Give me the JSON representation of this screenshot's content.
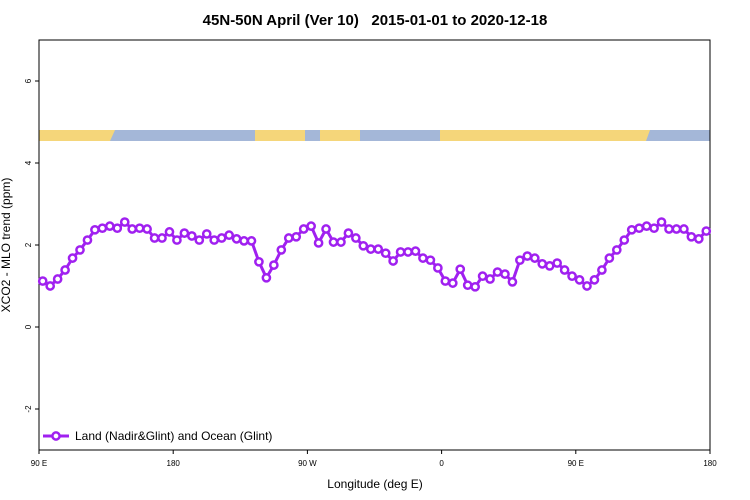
{
  "chart_data": {
    "type": "line",
    "title": "45N-50N April (Ver 10)   2015-01-01 to 2020-12-18",
    "xlabel": "Longitude (deg E)",
    "ylabel": "XCO2 - MLO trend (ppm)",
    "xlim": [
      90,
      540
    ],
    "ylim": [
      -3,
      7
    ],
    "xticks": [
      {
        "value": 90,
        "label": "90 E"
      },
      180,
      {
        "value": 270,
        "label": "90 W"
      },
      {
        "value": 360,
        "label": "0"
      },
      {
        "value": 450,
        "label": "90 E"
      },
      {
        "value": 540,
        "label": "180"
      }
    ],
    "yticks": [
      -2,
      0,
      2,
      4,
      6
    ],
    "legend": "bottom-left",
    "x": [
      92.5,
      97.5,
      102.5,
      107.5,
      112.5,
      117.5,
      122.5,
      127.5,
      132.5,
      137.5,
      142.5,
      147.5,
      152.5,
      157.5,
      162.5,
      167.5,
      172.5,
      177.5,
      182.5,
      187.5,
      192.5,
      197.5,
      202.5,
      207.5,
      212.5,
      217.5,
      222.5,
      227.5,
      232.5,
      237.5,
      242.5,
      247.5,
      252.5,
      257.5,
      262.5,
      267.5,
      272.5,
      277.5,
      282.5,
      287.5,
      292.5,
      297.5,
      302.5,
      307.5,
      312.5,
      317.5,
      322.5,
      327.5,
      332.5,
      337.5,
      342.5,
      347.5,
      352.5,
      357.5,
      362.5,
      367.5,
      372.5,
      377.5,
      382.5,
      387.5,
      392.5,
      397.5,
      402.5,
      407.5,
      412.5,
      417.5,
      422.5,
      427.5,
      432.5,
      437.5,
      442.5,
      447.5,
      452.5,
      457.5,
      462.5,
      467.5,
      472.5,
      477.5,
      482.5,
      487.5,
      492.5,
      497.5,
      502.5,
      507.5,
      512.5,
      517.5,
      522.5,
      527.5,
      532.5,
      537.5
    ],
    "series": [
      {
        "name": "Land (Nadir&Glint) and Ocean (Glint)",
        "color": "#a020f0",
        "values": [
          1.12,
          1.0,
          1.17,
          1.39,
          1.68,
          1.88,
          2.12,
          2.37,
          2.41,
          2.46,
          2.41,
          2.56,
          2.39,
          2.41,
          2.39,
          2.17,
          2.17,
          2.32,
          2.12,
          2.29,
          2.22,
          2.12,
          2.27,
          2.12,
          2.17,
          2.24,
          2.15,
          2.1,
          2.1,
          1.59,
          1.2,
          1.51,
          1.88,
          2.17,
          2.2,
          2.39,
          2.46,
          2.05,
          2.39,
          2.07,
          2.07,
          2.29,
          2.17,
          1.98,
          1.9,
          1.9,
          1.8,
          1.61,
          1.83,
          1.83,
          1.85,
          1.68,
          1.63,
          1.44,
          1.12,
          1.07,
          1.41,
          1.02,
          0.98,
          1.24,
          1.17,
          1.34,
          1.29,
          1.1,
          1.63,
          1.73,
          1.68,
          1.54,
          1.49,
          1.56,
          1.39,
          1.24,
          1.15,
          1.0,
          1.15,
          1.39,
          1.68,
          1.88,
          2.12,
          2.37,
          2.41,
          2.46,
          2.41,
          2.56,
          2.39,
          2.39,
          2.39,
          2.2,
          2.15,
          2.34
        ]
      }
    ]
  }
}
